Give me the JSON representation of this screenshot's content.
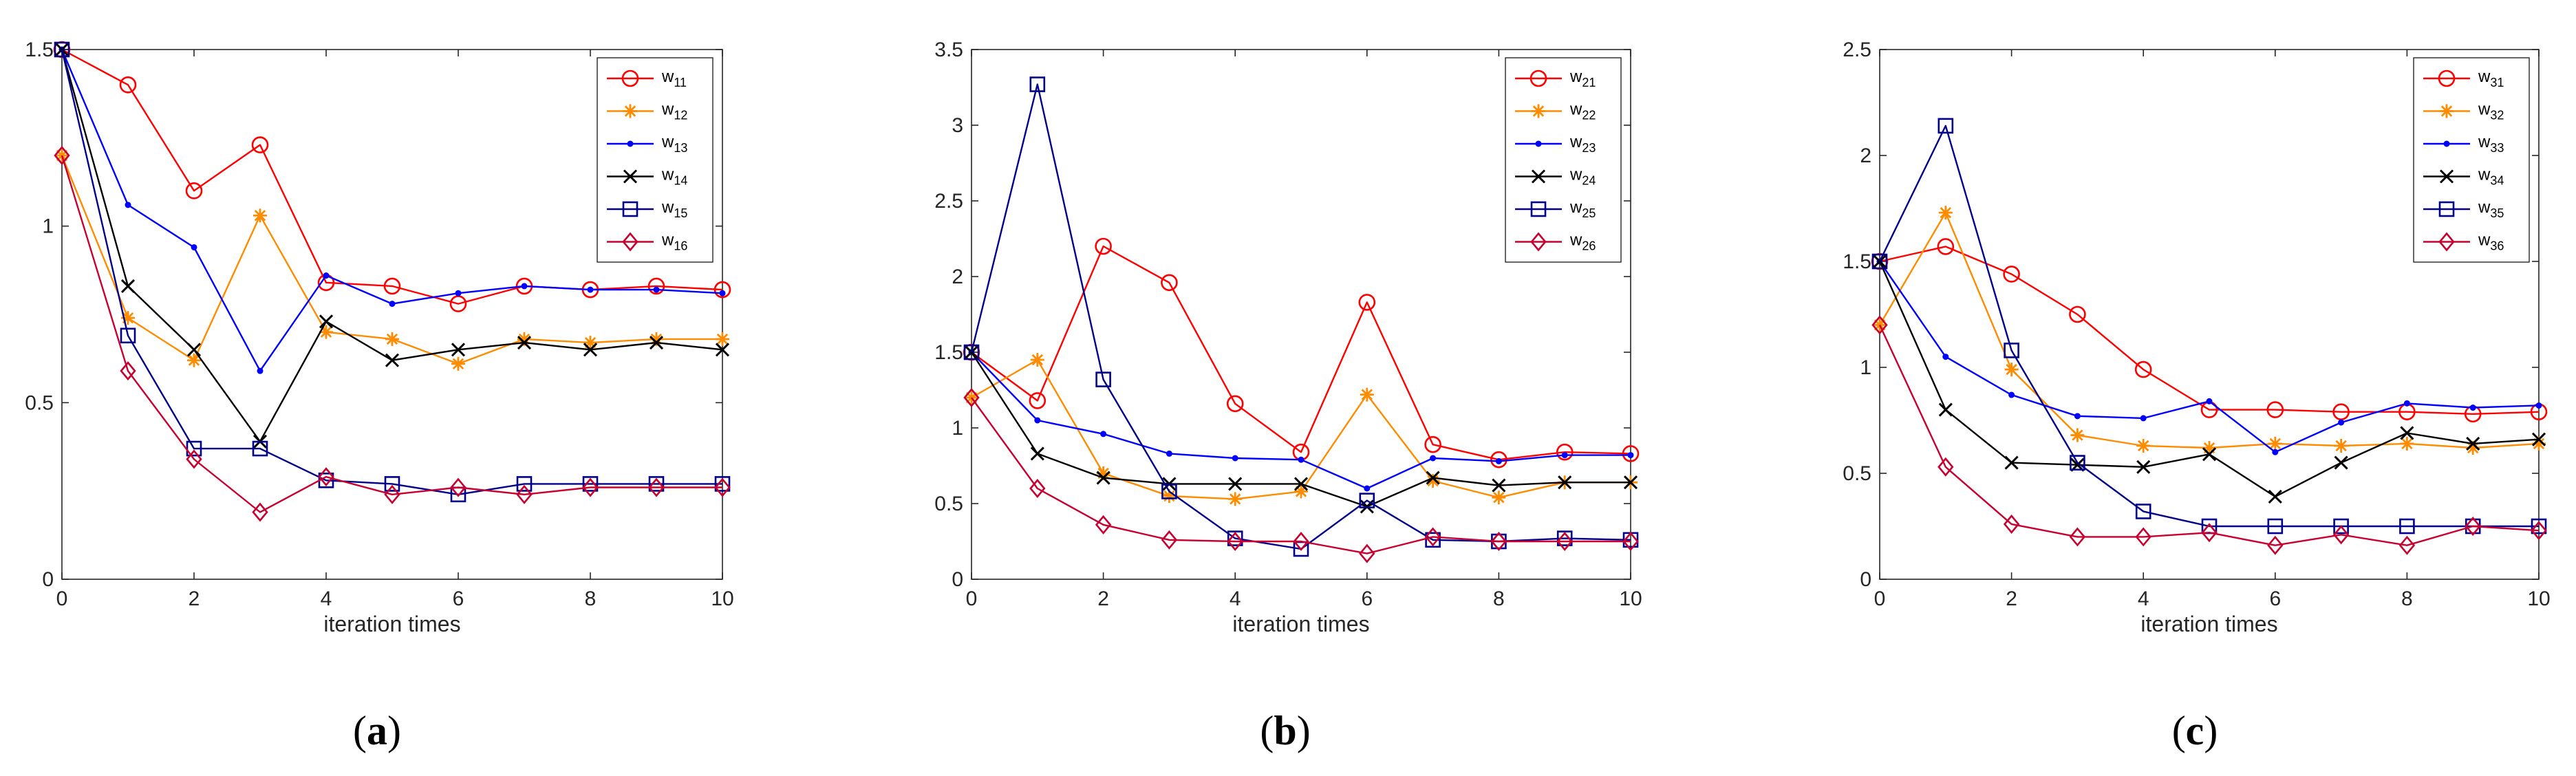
{
  "colors": {
    "s1": "#ff0000",
    "s2": "#ff8c00",
    "s3": "#0000ff",
    "s4": "#000000",
    "s5": "#00008b",
    "s6": "#c8002f",
    "axis": "#262626"
  },
  "chart_data": [
    {
      "type": "line",
      "panel_label": "a",
      "xlabel": "iteration times",
      "ylabel": "",
      "xlim": [
        0,
        10
      ],
      "ylim": [
        0,
        1.5
      ],
      "xticks": [
        0,
        2,
        4,
        6,
        8,
        10
      ],
      "yticks": [
        0,
        0.5,
        1,
        1.5
      ],
      "legend_position": "top-right",
      "x": [
        0,
        1,
        2,
        3,
        4,
        5,
        6,
        7,
        8,
        9,
        10
      ],
      "series": [
        {
          "name": "w",
          "sub": "11",
          "marker": "circle",
          "color_key": "s1",
          "values": [
            1.5,
            1.4,
            1.1,
            1.23,
            0.84,
            0.83,
            0.78,
            0.83,
            0.82,
            0.83,
            0.82
          ]
        },
        {
          "name": "w",
          "sub": "12",
          "marker": "star",
          "color_key": "s2",
          "values": [
            1.2,
            0.74,
            0.62,
            1.03,
            0.7,
            0.68,
            0.61,
            0.68,
            0.67,
            0.68,
            0.68
          ]
        },
        {
          "name": "w",
          "sub": "13",
          "marker": "dot",
          "color_key": "s3",
          "values": [
            1.5,
            1.06,
            0.94,
            0.59,
            0.86,
            0.78,
            0.81,
            0.83,
            0.82,
            0.82,
            0.81
          ]
        },
        {
          "name": "w",
          "sub": "14",
          "marker": "x",
          "color_key": "s4",
          "values": [
            1.5,
            0.83,
            0.65,
            0.39,
            0.73,
            0.62,
            0.65,
            0.67,
            0.65,
            0.67,
            0.65
          ]
        },
        {
          "name": "w",
          "sub": "15",
          "marker": "square",
          "color_key": "s5",
          "values": [
            1.5,
            0.69,
            0.37,
            0.37,
            0.28,
            0.27,
            0.24,
            0.27,
            0.27,
            0.27,
            0.27
          ]
        },
        {
          "name": "w",
          "sub": "16",
          "marker": "diamond",
          "color_key": "s6",
          "values": [
            1.2,
            0.59,
            0.34,
            0.19,
            0.29,
            0.24,
            0.26,
            0.24,
            0.26,
            0.26,
            0.26
          ]
        }
      ]
    },
    {
      "type": "line",
      "panel_label": "b",
      "xlabel": "iteration times",
      "ylabel": "",
      "xlim": [
        0,
        10
      ],
      "ylim": [
        0,
        3.5
      ],
      "xticks": [
        0,
        2,
        4,
        6,
        8,
        10
      ],
      "yticks": [
        0,
        0.5,
        1,
        1.5,
        2,
        2.5,
        3,
        3.5
      ],
      "legend_position": "top-right",
      "x": [
        0,
        1,
        2,
        3,
        4,
        5,
        6,
        7,
        8,
        9,
        10
      ],
      "series": [
        {
          "name": "w",
          "sub": "21",
          "marker": "circle",
          "color_key": "s1",
          "values": [
            1.5,
            1.18,
            2.2,
            1.96,
            1.16,
            0.84,
            1.83,
            0.89,
            0.79,
            0.84,
            0.83
          ]
        },
        {
          "name": "w",
          "sub": "22",
          "marker": "star",
          "color_key": "s2",
          "values": [
            1.2,
            1.45,
            0.7,
            0.55,
            0.53,
            0.58,
            1.22,
            0.65,
            0.54,
            0.64,
            0.64
          ]
        },
        {
          "name": "w",
          "sub": "23",
          "marker": "dot",
          "color_key": "s3",
          "values": [
            1.5,
            1.05,
            0.96,
            0.83,
            0.8,
            0.79,
            0.6,
            0.8,
            0.78,
            0.82,
            0.82
          ]
        },
        {
          "name": "w",
          "sub": "24",
          "marker": "x",
          "color_key": "s4",
          "values": [
            1.5,
            0.83,
            0.67,
            0.63,
            0.63,
            0.63,
            0.48,
            0.67,
            0.62,
            0.64,
            0.64
          ]
        },
        {
          "name": "w",
          "sub": "25",
          "marker": "square",
          "color_key": "s5",
          "values": [
            1.5,
            3.27,
            1.32,
            0.58,
            0.27,
            0.2,
            0.52,
            0.26,
            0.25,
            0.27,
            0.26
          ]
        },
        {
          "name": "w",
          "sub": "26",
          "marker": "diamond",
          "color_key": "s6",
          "values": [
            1.2,
            0.6,
            0.36,
            0.26,
            0.25,
            0.25,
            0.17,
            0.28,
            0.25,
            0.25,
            0.25
          ]
        }
      ]
    },
    {
      "type": "line",
      "panel_label": "c",
      "xlabel": "iteration times",
      "ylabel": "",
      "xlim": [
        0,
        10
      ],
      "ylim": [
        0,
        2.5
      ],
      "xticks": [
        0,
        2,
        4,
        6,
        8,
        10
      ],
      "yticks": [
        0,
        0.5,
        1,
        1.5,
        2,
        2.5
      ],
      "legend_position": "top-right",
      "x": [
        0,
        1,
        2,
        3,
        4,
        5,
        6,
        7,
        8,
        9,
        10
      ],
      "series": [
        {
          "name": "w",
          "sub": "31",
          "marker": "circle",
          "color_key": "s1",
          "values": [
            1.5,
            1.57,
            1.44,
            1.25,
            0.99,
            0.8,
            0.8,
            0.79,
            0.79,
            0.78,
            0.79
          ]
        },
        {
          "name": "w",
          "sub": "32",
          "marker": "star",
          "color_key": "s2",
          "values": [
            1.2,
            1.73,
            0.99,
            0.68,
            0.63,
            0.62,
            0.64,
            0.63,
            0.64,
            0.62,
            0.64
          ]
        },
        {
          "name": "w",
          "sub": "33",
          "marker": "dot",
          "color_key": "s3",
          "values": [
            1.5,
            1.05,
            0.87,
            0.77,
            0.76,
            0.84,
            0.6,
            0.74,
            0.83,
            0.81,
            0.82
          ]
        },
        {
          "name": "w",
          "sub": "34",
          "marker": "x",
          "color_key": "s4",
          "values": [
            1.5,
            0.8,
            0.55,
            0.54,
            0.53,
            0.59,
            0.39,
            0.55,
            0.69,
            0.64,
            0.66
          ]
        },
        {
          "name": "w",
          "sub": "35",
          "marker": "square",
          "color_key": "s5",
          "values": [
            1.5,
            2.14,
            1.08,
            0.55,
            0.32,
            0.25,
            0.25,
            0.25,
            0.25,
            0.25,
            0.25
          ]
        },
        {
          "name": "w",
          "sub": "36",
          "marker": "diamond",
          "color_key": "s6",
          "values": [
            1.2,
            0.53,
            0.26,
            0.2,
            0.2,
            0.22,
            0.16,
            0.21,
            0.16,
            0.25,
            0.23
          ]
        }
      ]
    }
  ]
}
